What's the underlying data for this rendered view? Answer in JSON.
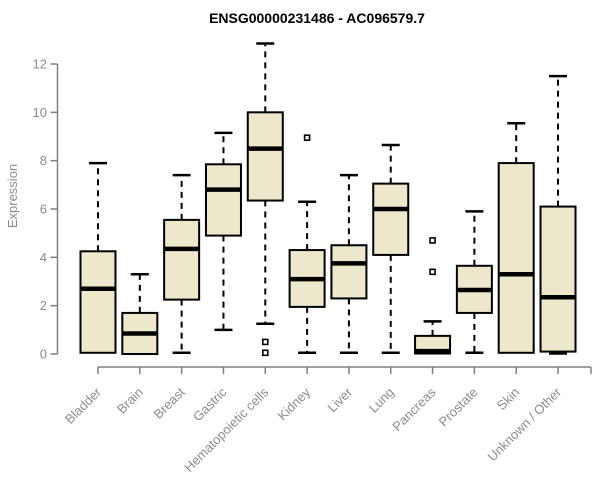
{
  "title": "ENSG00000231486 - AC096579.7",
  "colors": {
    "box_fill": "#EDE8CC",
    "box_stroke": "#000000",
    "median": "#000000",
    "axis": "#808080",
    "tick_label": "#8C8C8C",
    "title": "#000000",
    "background": "#FFFFFF",
    "outlier_fill": "#FFFFFF"
  },
  "chart_data": {
    "type": "box",
    "title": "ENSG00000231486 - AC096579.7",
    "xlabel": "",
    "ylabel": "Expression",
    "ylim": [
      0,
      12
    ],
    "yticks": [
      0,
      2,
      4,
      6,
      8,
      10,
      12
    ],
    "grid": false,
    "legend": "none",
    "categories": [
      "Bladder",
      "Brain",
      "Breast",
      "Gastric",
      "Hematopoietic cells",
      "Kidney",
      "Liver",
      "Lung",
      "Pancreas",
      "Prostate",
      "Skin",
      "Unknown / Other"
    ],
    "series": [
      {
        "name": "Bladder",
        "whisker_low": 0.05,
        "q1": 0.05,
        "median": 2.7,
        "q3": 4.25,
        "whisker_high": 7.9,
        "outliers": []
      },
      {
        "name": "Brain",
        "whisker_low": 0.0,
        "q1": 0.0,
        "median": 0.85,
        "q3": 1.7,
        "whisker_high": 3.3,
        "outliers": []
      },
      {
        "name": "Breast",
        "whisker_low": 0.05,
        "q1": 2.25,
        "median": 4.35,
        "q3": 5.55,
        "whisker_high": 7.4,
        "outliers": []
      },
      {
        "name": "Gastric",
        "whisker_low": 1.0,
        "q1": 4.9,
        "median": 6.8,
        "q3": 7.85,
        "whisker_high": 9.15,
        "outliers": []
      },
      {
        "name": "Hematopoietic cells",
        "whisker_low": 1.25,
        "q1": 6.35,
        "median": 8.5,
        "q3": 10.0,
        "whisker_high": 12.85,
        "outliers": [
          0.5,
          0.05
        ]
      },
      {
        "name": "Kidney",
        "whisker_low": 0.05,
        "q1": 1.95,
        "median": 3.1,
        "q3": 4.3,
        "whisker_high": 6.3,
        "outliers": [
          8.95
        ]
      },
      {
        "name": "Liver",
        "whisker_low": 0.05,
        "q1": 2.3,
        "median": 3.75,
        "q3": 4.5,
        "whisker_high": 7.4,
        "outliers": []
      },
      {
        "name": "Lung",
        "whisker_low": 0.05,
        "q1": 4.1,
        "median": 6.0,
        "q3": 7.05,
        "whisker_high": 8.65,
        "outliers": []
      },
      {
        "name": "Pancreas",
        "whisker_low": 0.02,
        "q1": 0.02,
        "median": 0.12,
        "q3": 0.75,
        "whisker_high": 1.35,
        "outliers": [
          4.7,
          3.4
        ]
      },
      {
        "name": "Prostate",
        "whisker_low": 0.05,
        "q1": 1.7,
        "median": 2.65,
        "q3": 3.65,
        "whisker_high": 5.9,
        "outliers": []
      },
      {
        "name": "Skin",
        "whisker_low": 0.05,
        "q1": 0.05,
        "median": 3.3,
        "q3": 7.9,
        "whisker_high": 9.55,
        "outliers": []
      },
      {
        "name": "Unknown / Other",
        "whisker_low": 0.02,
        "q1": 0.1,
        "median": 2.35,
        "q3": 6.1,
        "whisker_high": 11.5,
        "outliers": []
      }
    ]
  }
}
